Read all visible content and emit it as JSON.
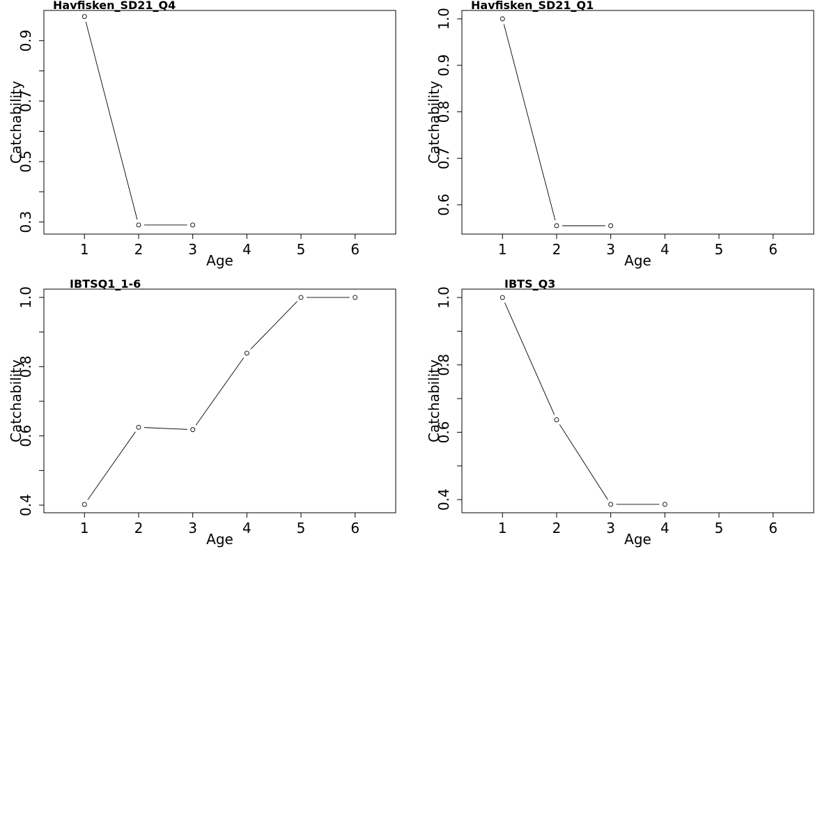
{
  "chart_data": [
    {
      "type": "line",
      "title": "Havfisken_SD21_Q4",
      "xlabel": "Age",
      "ylabel": "Catchability",
      "x": [
        1,
        2,
        3
      ],
      "y": [
        0.98,
        0.29,
        0.29
      ],
      "xlim": [
        0.25,
        6.75
      ],
      "ylim": [
        0.26,
        1.0
      ],
      "xticks": [
        1,
        2,
        3,
        4,
        5,
        6
      ],
      "yticks_labeled": [
        0.3,
        0.5,
        0.7,
        0.9
      ],
      "yticks_minor": [
        0.4,
        0.6,
        0.8
      ],
      "ytick_labels": [
        "0.3",
        "0.5",
        "0.7",
        "0.9"
      ],
      "xtick_labels": [
        "1",
        "2",
        "3",
        "4",
        "5",
        "6"
      ]
    },
    {
      "type": "line",
      "title": "Havfisken_SD21_Q1",
      "xlabel": "Age",
      "ylabel": "Catchability",
      "x": [
        1,
        2,
        3
      ],
      "y": [
        1.0,
        0.555,
        0.555
      ],
      "xlim": [
        0.25,
        6.75
      ],
      "ylim": [
        0.537,
        1.018
      ],
      "xticks": [
        1,
        2,
        3,
        4,
        5,
        6
      ],
      "yticks_labeled": [
        0.6,
        0.7,
        0.8,
        0.9,
        1.0
      ],
      "yticks_minor": [],
      "ytick_labels": [
        "0.6",
        "0.7",
        "0.8",
        "0.9",
        "1.0"
      ],
      "xtick_labels": [
        "1",
        "2",
        "3",
        "4",
        "5",
        "6"
      ]
    },
    {
      "type": "line",
      "title": "IBTSQ1_1-6",
      "xlabel": "Age",
      "ylabel": "Catchability",
      "x": [
        1,
        2,
        3,
        4,
        5,
        6
      ],
      "y": [
        0.402,
        0.625,
        0.618,
        0.839,
        1.0,
        1.0
      ],
      "xlim": [
        0.25,
        6.75
      ],
      "ylim": [
        0.378,
        1.024
      ],
      "xticks": [
        1,
        2,
        3,
        4,
        5,
        6
      ],
      "yticks_labeled": [
        0.4,
        0.6,
        0.8,
        1.0
      ],
      "yticks_minor": [
        0.5,
        0.7,
        0.9
      ],
      "ytick_labels": [
        "0.4",
        "0.6",
        "0.8",
        "1.0"
      ],
      "xtick_labels": [
        "1",
        "2",
        "3",
        "4",
        "5",
        "6"
      ]
    },
    {
      "type": "line",
      "title": "IBTS_Q3",
      "xlabel": "Age",
      "ylabel": "Catchability",
      "x": [
        1,
        2,
        3,
        4
      ],
      "y": [
        1.0,
        0.637,
        0.386,
        0.386
      ],
      "xlim": [
        0.25,
        6.75
      ],
      "ylim": [
        0.361,
        1.025
      ],
      "xticks": [
        1,
        2,
        3,
        4,
        5,
        6
      ],
      "yticks_labeled": [
        0.4,
        0.6,
        0.8,
        1.0
      ],
      "yticks_minor": [
        0.5,
        0.7,
        0.9
      ],
      "ytick_labels": [
        "0.4",
        "0.6",
        "0.8",
        "1.0"
      ],
      "xtick_labels": [
        "1",
        "2",
        "3",
        "4",
        "5",
        "6"
      ]
    }
  ]
}
